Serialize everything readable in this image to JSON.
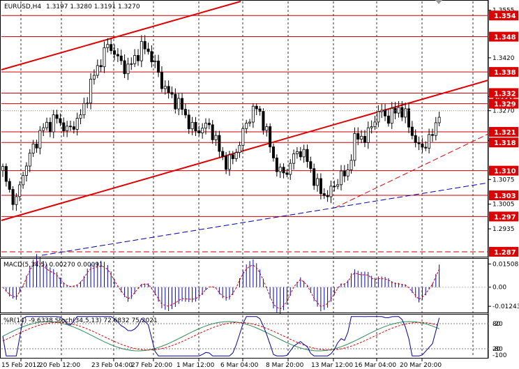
{
  "header": {
    "symbol": "EURUSD,H4",
    "ohlc": "1.3197 1.3280 1.3191 1.3270"
  },
  "macd_header": "MACD(5,34,5) 0.00270 0.00091",
  "osc_header": "%R(14) -9.6338 Stoch(34,5,13) 72.6832 75.2021",
  "colors": {
    "candle_up": "#ffffff",
    "candle_down": "#000000",
    "level_line": "#cc0000",
    "label_bg": "#dd0000",
    "trend_red": "#dd0000",
    "trend_blue": "#0000aa",
    "macd_hist": "#0000cc",
    "macd_signal": "#dd0000",
    "wpr": "#0000aa",
    "stoch_main": "#2e8b57",
    "stoch_signal": "#dd0000"
  },
  "chart_data": [
    {
      "type": "candlestick",
      "ylim": [
        1.286,
        1.358
      ],
      "x_ticks": [
        "15 Feb 2012",
        "20 Feb 12:00",
        "23 Feb 04:00",
        "27 Feb 20:00",
        "1 Mar 12:00",
        "6 Mar 04:00",
        "8 Mar 20:00",
        "13 Mar 12:00",
        "16 Mar 04:00",
        "20 Mar 20:00"
      ],
      "y_ticks": [
        "1.3555",
        "1.3420",
        "1.3310",
        "1.3270",
        "1.3185",
        "1.3075",
        "1.3005",
        "1.2935"
      ],
      "levels": [
        "1.354",
        "1.348",
        "1.338",
        "1.332",
        "1.329",
        "1.321",
        "1.318",
        "1.310",
        "1.303",
        "1.297",
        "1.287"
      ],
      "level_values": [
        1.354,
        1.348,
        1.338,
        1.332,
        1.329,
        1.321,
        1.318,
        1.31,
        1.303,
        1.297,
        1.287
      ],
      "close_path": [
        1.31,
        1.304,
        1.301,
        1.309,
        1.314,
        1.318,
        1.322,
        1.323,
        1.325,
        1.323,
        1.321,
        1.324,
        1.326,
        1.333,
        1.338,
        1.342,
        1.346,
        1.343,
        1.34,
        1.339,
        1.342,
        1.345,
        1.344,
        1.34,
        1.335,
        1.332,
        1.33,
        1.328,
        1.324,
        1.321,
        1.322,
        1.323,
        1.32,
        1.314,
        1.312,
        1.314,
        1.319,
        1.324,
        1.328,
        1.326,
        1.32,
        1.313,
        1.309,
        1.31,
        1.314,
        1.316,
        1.313,
        1.308,
        1.304,
        1.303,
        1.305,
        1.309,
        1.308,
        1.318,
        1.32,
        1.319,
        1.324,
        1.327,
        1.325,
        1.326,
        1.328,
        1.325,
        1.32,
        1.316,
        1.318,
        1.32,
        1.327
      ]
    },
    {
      "type": "bar",
      "name": "MACD",
      "y_ticks": [
        "0.01508",
        "0.00",
        "-0.01243"
      ],
      "ylim": [
        -0.016,
        0.018
      ]
    },
    {
      "type": "line",
      "name": "oscillator",
      "y_ticks": [
        "80",
        "20",
        "-20",
        "-80",
        "-100"
      ],
      "ylim": [
        0,
        100
      ]
    }
  ]
}
